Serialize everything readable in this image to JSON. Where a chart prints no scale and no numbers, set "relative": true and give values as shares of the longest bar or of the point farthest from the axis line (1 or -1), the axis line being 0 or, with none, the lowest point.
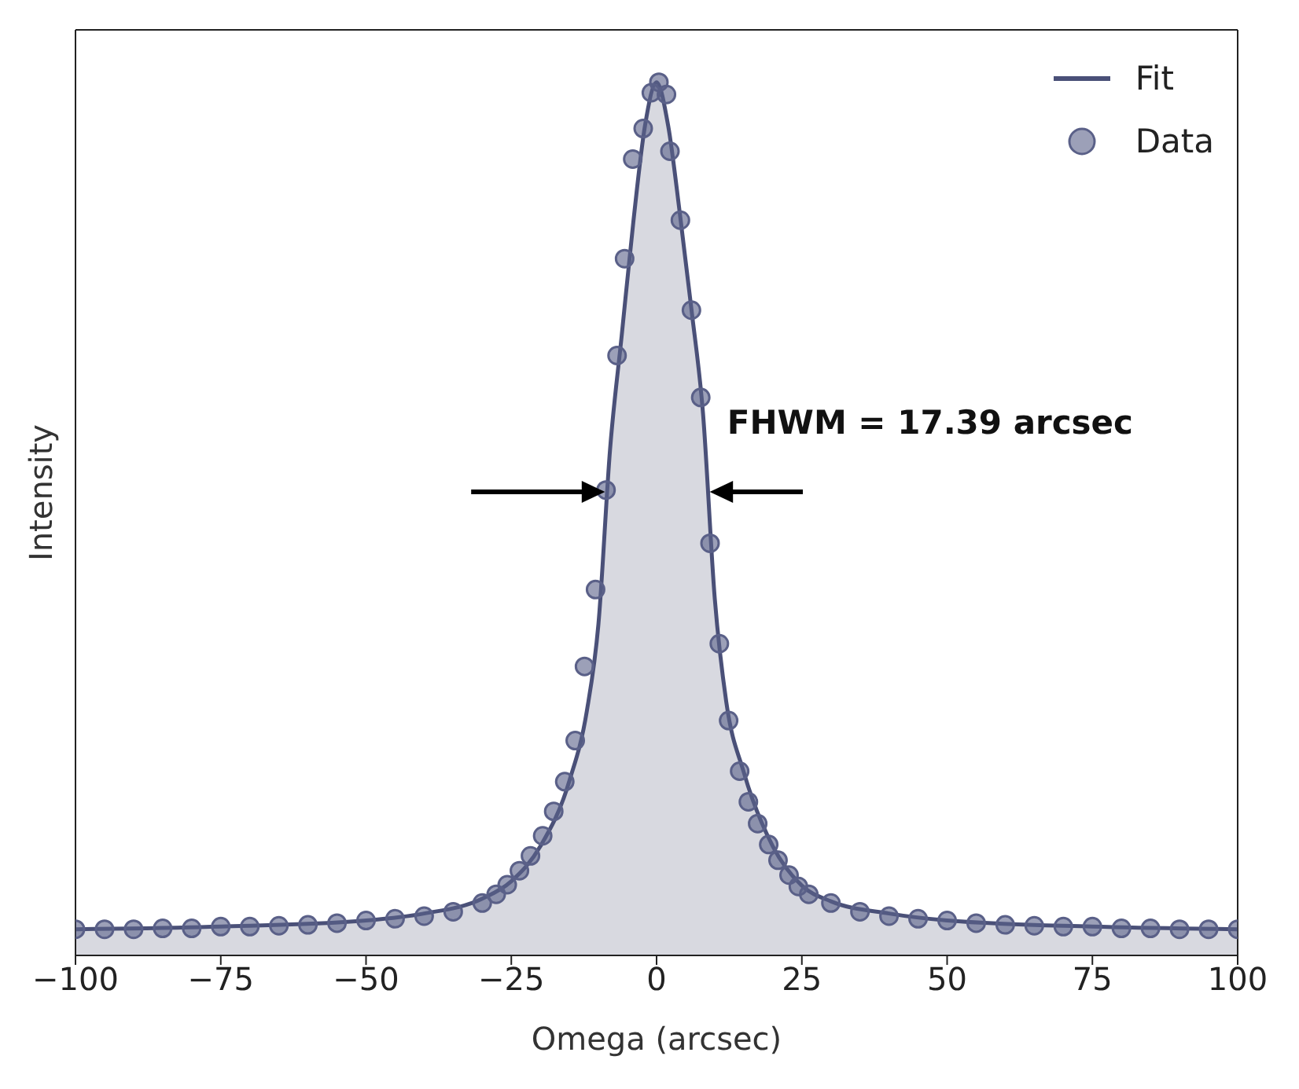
{
  "chart_data": {
    "type": "scatter",
    "relative": true,
    "xlabel": "Omega (arcsec)",
    "ylabel": "Intensity",
    "xlim": [
      -100,
      100
    ],
    "xticks": [
      {
        "value": -100,
        "label": "−100"
      },
      {
        "value": -75,
        "label": "−75"
      },
      {
        "value": -50,
        "label": "−50"
      },
      {
        "value": -25,
        "label": "−25"
      },
      0,
      25,
      50,
      75,
      100
    ],
    "legend": "top right",
    "tick_labels": "x",
    "annotations": [
      "FHWM = 17.39 arcsec"
    ],
    "series": [
      {
        "name": "Fit",
        "type": "area",
        "marker": "none",
        "color": "#4a5078",
        "x": [
          -100,
          -75,
          -50,
          -40,
          -30,
          -25,
          -20,
          -15,
          -12,
          -10,
          -8,
          -6,
          -4,
          -2,
          0,
          2,
          4,
          6,
          8,
          10,
          12,
          15,
          20,
          25,
          30,
          40,
          50,
          75,
          100
        ],
        "values": [
          0.03,
          0.033,
          0.04,
          0.048,
          0.065,
          0.085,
          0.125,
          0.2,
          0.28,
          0.38,
          0.58,
          0.71,
          0.84,
          0.95,
          1.0,
          0.95,
          0.85,
          0.74,
          0.62,
          0.41,
          0.29,
          0.21,
          0.125,
          0.08,
          0.062,
          0.048,
          0.04,
          0.033,
          0.03
        ]
      },
      {
        "name": "Data",
        "marker": "circle",
        "color": "#5a6088",
        "x": [
          -100,
          -95,
          -90,
          -85,
          -80,
          -75,
          -70,
          -65,
          -60,
          -55,
          -50,
          -45,
          -40,
          -35,
          -30,
          -27.6,
          -25.7,
          -23.6,
          -21.7,
          -19.6,
          -17.7,
          -15.8,
          -14.0,
          -12.4,
          -10.5,
          -8.7,
          -6.8,
          -5.5,
          -4.1,
          -2.3,
          -0.9,
          0.4,
          1.7,
          2.3,
          4.1,
          6.0,
          7.6,
          9.2,
          10.8,
          12.4,
          14.3,
          15.8,
          17.4,
          19.3,
          20.9,
          22.8,
          24.4,
          26.2,
          30,
          35,
          40,
          45,
          50,
          55,
          60,
          65,
          70,
          75,
          80,
          85,
          90,
          95,
          100
        ],
        "values": [
          0.03,
          0.03,
          0.03,
          0.031,
          0.031,
          0.033,
          0.033,
          0.034,
          0.035,
          0.037,
          0.04,
          0.042,
          0.045,
          0.05,
          0.06,
          0.07,
          0.081,
          0.097,
          0.114,
          0.137,
          0.165,
          0.199,
          0.246,
          0.331,
          0.419,
          0.533,
          0.687,
          0.798,
          0.912,
          0.947,
          0.988,
          1.0,
          0.986,
          0.921,
          0.842,
          0.739,
          0.639,
          0.472,
          0.357,
          0.269,
          0.211,
          0.176,
          0.151,
          0.127,
          0.109,
          0.092,
          0.079,
          0.07,
          0.06,
          0.05,
          0.045,
          0.042,
          0.04,
          0.037,
          0.035,
          0.034,
          0.033,
          0.033,
          0.031,
          0.031,
          0.03,
          0.03,
          0.03
        ]
      }
    ]
  }
}
